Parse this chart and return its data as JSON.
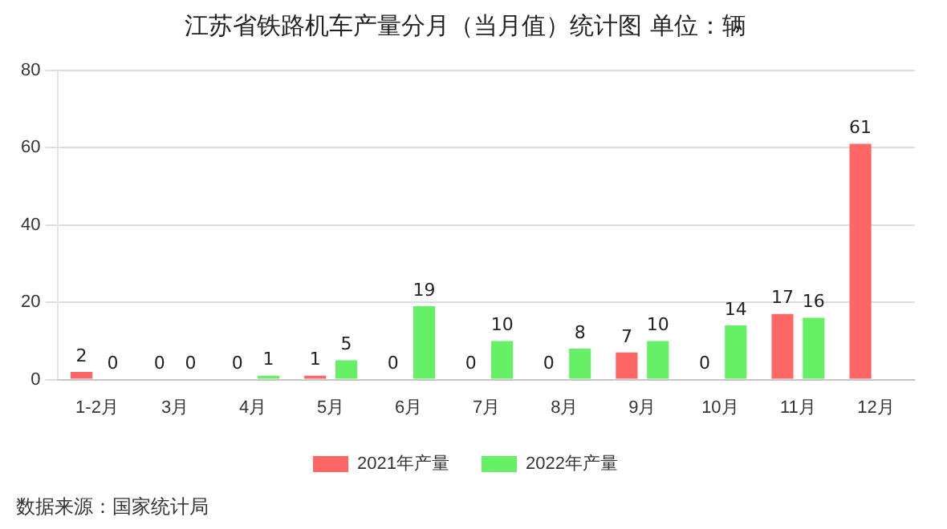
{
  "chart_data": {
    "type": "bar",
    "title": "江苏省铁路机车产量分月（当月值）统计图 单位：辆",
    "categories": [
      "1-2月",
      "3月",
      "4月",
      "5月",
      "6月",
      "7月",
      "8月",
      "9月",
      "10月",
      "11月",
      "12月"
    ],
    "series": [
      {
        "name": "2021年产量",
        "color": "#ff6666",
        "values": [
          2,
          0,
          0,
          1,
          0,
          0,
          0,
          7,
          0,
          17,
          61
        ]
      },
      {
        "name": "2022年产量",
        "color": "#66f066",
        "values": [
          0,
          0,
          1,
          5,
          19,
          10,
          8,
          10,
          14,
          16,
          null
        ]
      }
    ],
    "ylim": [
      0,
      80
    ],
    "yticks": [
      0,
      20,
      40,
      60,
      80
    ],
    "grid": "y",
    "legend": "bottom",
    "data_labels": true,
    "annotations": [
      "数据来源：国家统计局"
    ]
  }
}
